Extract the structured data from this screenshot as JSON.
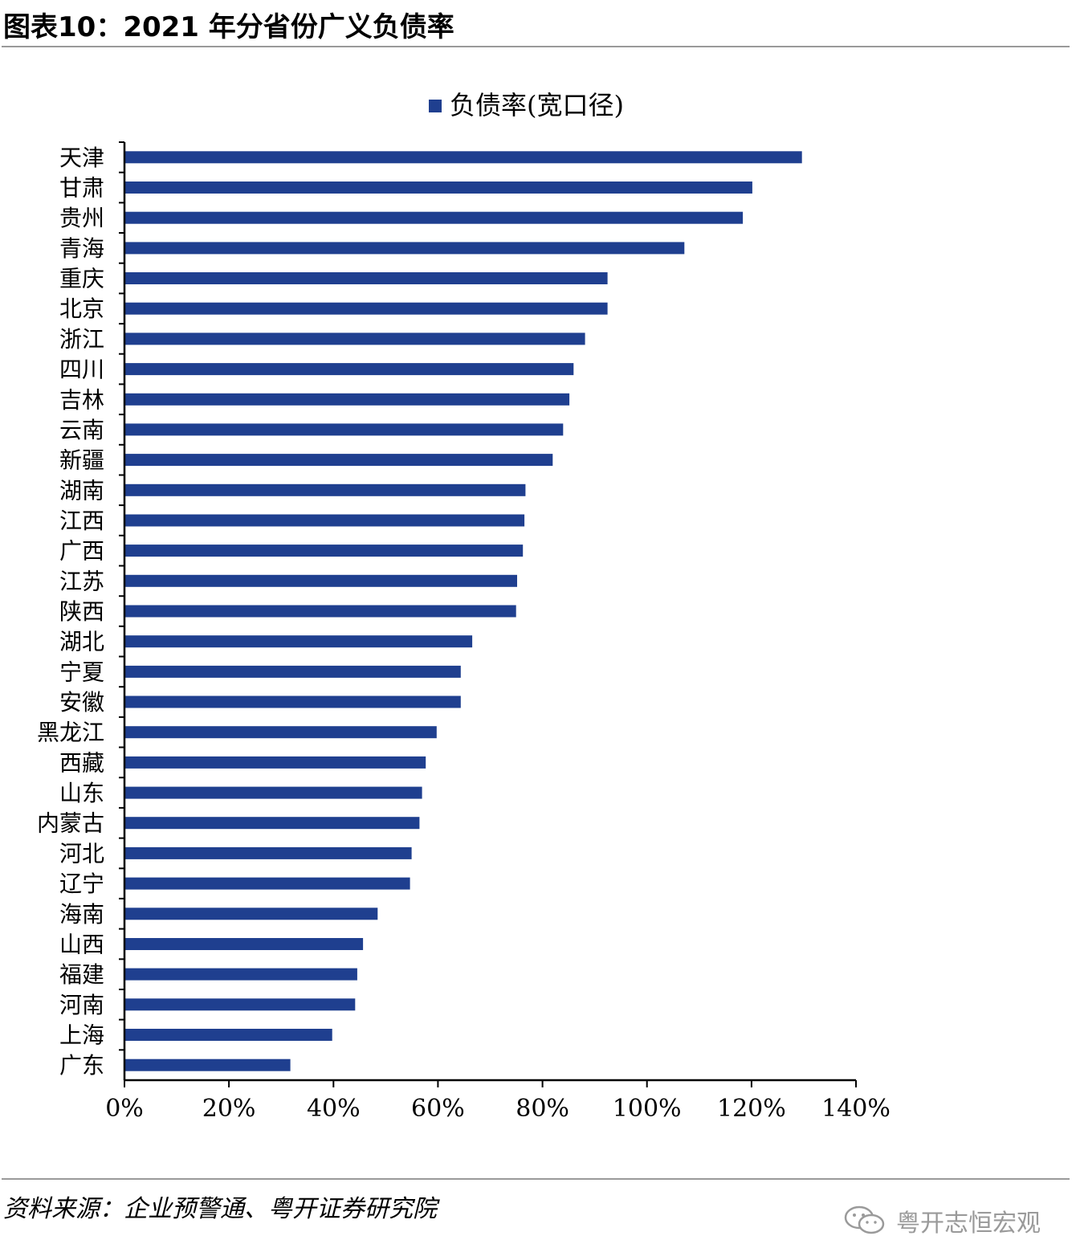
{
  "figure": {
    "title": "图表10：2021 年分省份广义负债率",
    "source": "资料来源：企业预警通、粤开证券研究院",
    "watermark": "粤开志恒宏观"
  },
  "chart_data": {
    "type": "bar",
    "orientation": "horizontal",
    "title": "",
    "xlabel": "",
    "ylabel": "",
    "xlim": [
      0,
      140
    ],
    "x_ticks": [
      "0%",
      "20%",
      "40%",
      "60%",
      "80%",
      "100%",
      "120%",
      "140%"
    ],
    "legend_position": "top-center",
    "grid": false,
    "bar_color": "#1f3f8f",
    "categories": [
      "天津",
      "甘肃",
      "贵州",
      "青海",
      "重庆",
      "北京",
      "浙江",
      "四川",
      "吉林",
      "云南",
      "新疆",
      "湖南",
      "江西",
      "广西",
      "江苏",
      "陕西",
      "湖北",
      "宁夏",
      "安徽",
      "黑龙江",
      "西藏",
      "山东",
      "内蒙古",
      "河北",
      "辽宁",
      "海南",
      "山西",
      "福建",
      "河南",
      "上海",
      "广东"
    ],
    "series": [
      {
        "name": "负债率(宽口径)",
        "values": [
          129.5,
          120.0,
          118.2,
          107.0,
          92.3,
          92.3,
          88.0,
          85.8,
          85.0,
          83.8,
          81.8,
          76.6,
          76.4,
          76.1,
          75.0,
          74.8,
          66.4,
          64.2,
          64.2,
          59.6,
          57.5,
          56.8,
          56.3,
          54.8,
          54.5,
          48.3,
          45.5,
          44.4,
          44.0,
          39.6,
          31.6
        ]
      }
    ]
  }
}
